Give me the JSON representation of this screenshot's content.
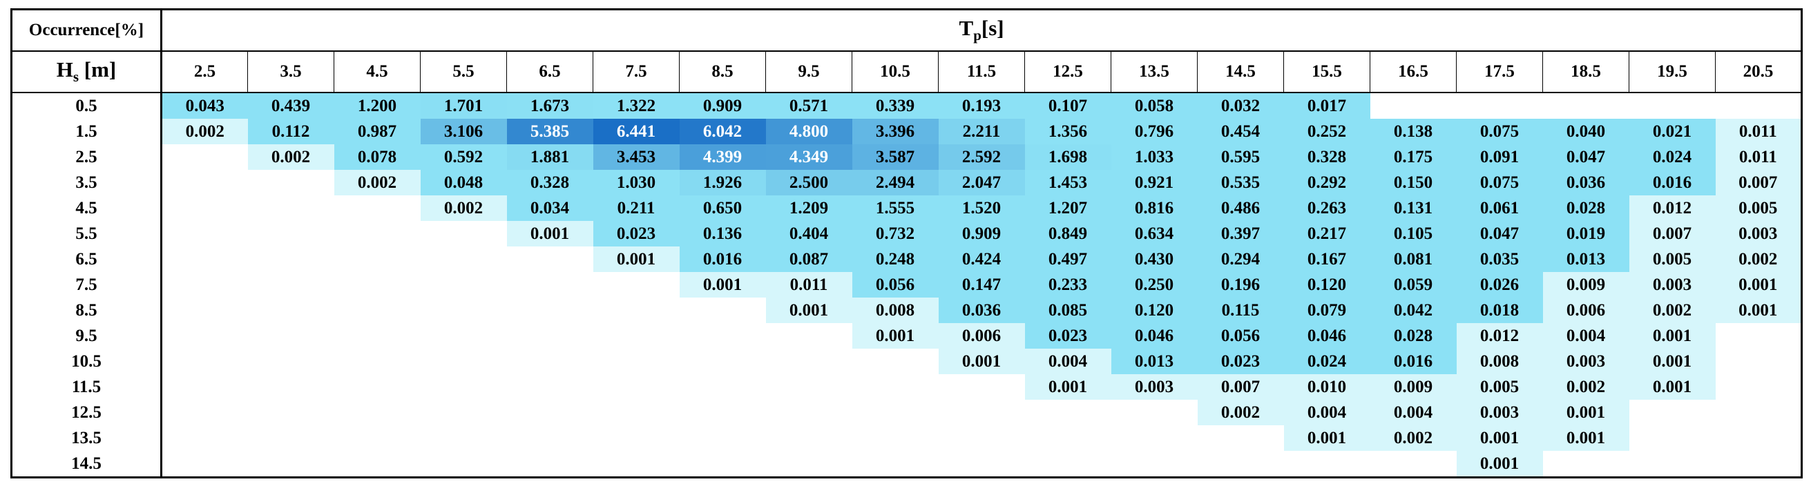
{
  "chart_data": {
    "type": "heatmap",
    "corner_label": "Occurrence[%]",
    "x_label": {
      "main": "T",
      "sub": "p",
      "unit": "[s]"
    },
    "y_label": {
      "main": "H",
      "sub": "s",
      "unit": " [m]"
    },
    "x": [
      "2.5",
      "3.5",
      "4.5",
      "5.5",
      "6.5",
      "7.5",
      "8.5",
      "9.5",
      "10.5",
      "11.5",
      "12.5",
      "13.5",
      "14.5",
      "15.5",
      "16.5",
      "17.5",
      "18.5",
      "19.5",
      "20.5"
    ],
    "y": [
      "0.5",
      "1.5",
      "2.5",
      "3.5",
      "4.5",
      "5.5",
      "6.5",
      "7.5",
      "8.5",
      "9.5",
      "10.5",
      "11.5",
      "12.5",
      "13.5",
      "14.5"
    ],
    "values": [
      [
        "0.043",
        "0.439",
        "1.200",
        "1.701",
        "1.673",
        "1.322",
        "0.909",
        "0.571",
        "0.339",
        "0.193",
        "0.107",
        "0.058",
        "0.032",
        "0.017",
        null,
        null,
        null,
        null,
        null
      ],
      [
        "0.002",
        "0.112",
        "0.987",
        "3.106",
        "5.385",
        "6.441",
        "6.042",
        "4.800",
        "3.396",
        "2.211",
        "1.356",
        "0.796",
        "0.454",
        "0.252",
        "0.138",
        "0.075",
        "0.040",
        "0.021",
        "0.011"
      ],
      [
        null,
        "0.002",
        "0.078",
        "0.592",
        "1.881",
        "3.453",
        "4.399",
        "4.349",
        "3.587",
        "2.592",
        "1.698",
        "1.033",
        "0.595",
        "0.328",
        "0.175",
        "0.091",
        "0.047",
        "0.024",
        "0.011"
      ],
      [
        null,
        null,
        "0.002",
        "0.048",
        "0.328",
        "1.030",
        "1.926",
        "2.500",
        "2.494",
        "2.047",
        "1.453",
        "0.921",
        "0.535",
        "0.292",
        "0.150",
        "0.075",
        "0.036",
        "0.016",
        "0.007"
      ],
      [
        null,
        null,
        null,
        "0.002",
        "0.034",
        "0.211",
        "0.650",
        "1.209",
        "1.555",
        "1.520",
        "1.207",
        "0.816",
        "0.486",
        "0.263",
        "0.131",
        "0.061",
        "0.028",
        "0.012",
        "0.005"
      ],
      [
        null,
        null,
        null,
        null,
        "0.001",
        "0.023",
        "0.136",
        "0.404",
        "0.732",
        "0.909",
        "0.849",
        "0.634",
        "0.397",
        "0.217",
        "0.105",
        "0.047",
        "0.019",
        "0.007",
        "0.003"
      ],
      [
        null,
        null,
        null,
        null,
        null,
        "0.001",
        "0.016",
        "0.087",
        "0.248",
        "0.424",
        "0.497",
        "0.430",
        "0.294",
        "0.167",
        "0.081",
        "0.035",
        "0.013",
        "0.005",
        "0.002"
      ],
      [
        null,
        null,
        null,
        null,
        null,
        null,
        "0.001",
        "0.011",
        "0.056",
        "0.147",
        "0.233",
        "0.250",
        "0.196",
        "0.120",
        "0.059",
        "0.026",
        "0.009",
        "0.003",
        "0.001"
      ],
      [
        null,
        null,
        null,
        null,
        null,
        null,
        null,
        "0.001",
        "0.008",
        "0.036",
        "0.085",
        "0.120",
        "0.115",
        "0.079",
        "0.042",
        "0.018",
        "0.006",
        "0.002",
        "0.001"
      ],
      [
        null,
        null,
        null,
        null,
        null,
        null,
        null,
        null,
        "0.001",
        "0.006",
        "0.023",
        "0.046",
        "0.056",
        "0.046",
        "0.028",
        "0.012",
        "0.004",
        "0.001",
        null
      ],
      [
        null,
        null,
        null,
        null,
        null,
        null,
        null,
        null,
        null,
        "0.001",
        "0.004",
        "0.013",
        "0.023",
        "0.024",
        "0.016",
        "0.008",
        "0.003",
        "0.001",
        null
      ],
      [
        null,
        null,
        null,
        null,
        null,
        null,
        null,
        null,
        null,
        null,
        "0.001",
        "0.003",
        "0.007",
        "0.010",
        "0.009",
        "0.005",
        "0.002",
        "0.001",
        null
      ],
      [
        null,
        null,
        null,
        null,
        null,
        null,
        null,
        null,
        null,
        null,
        null,
        null,
        "0.002",
        "0.004",
        "0.004",
        "0.003",
        "0.001",
        null,
        null
      ],
      [
        null,
        null,
        null,
        null,
        null,
        null,
        null,
        null,
        null,
        null,
        null,
        null,
        null,
        "0.001",
        "0.002",
        "0.001",
        "0.001",
        null,
        null
      ],
      [
        null,
        null,
        null,
        null,
        null,
        null,
        null,
        null,
        null,
        null,
        null,
        null,
        null,
        null,
        null,
        "0.001",
        null,
        null,
        null
      ]
    ],
    "colorscale": {
      "low": "#d6f6fb",
      "mid": "#8ce1f5",
      "high": "#1a6fc6",
      "text_dark": "#000000",
      "text_light": "#ffffff"
    }
  }
}
